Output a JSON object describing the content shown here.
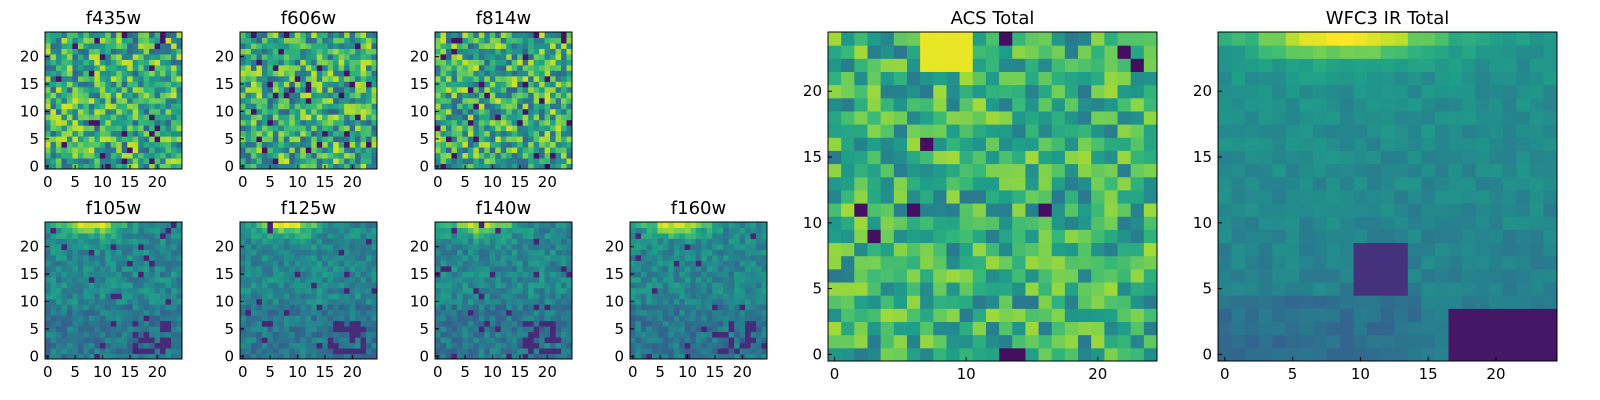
{
  "chart_data": {
    "type": "heatmap",
    "grid_size": 25,
    "colormap": "viridis",
    "panels": [
      {
        "id": "f435w",
        "title": "f435w",
        "xticks": [
          0,
          5,
          10,
          15,
          20
        ],
        "yticks": [
          0,
          5,
          10,
          15,
          20
        ],
        "pattern": "noise",
        "seed": 11
      },
      {
        "id": "f606w",
        "title": "f606w",
        "xticks": [
          0,
          5,
          10,
          15,
          20
        ],
        "yticks": [
          0,
          5,
          10,
          15,
          20
        ],
        "pattern": "noise",
        "seed": 23
      },
      {
        "id": "f814w",
        "title": "f814w",
        "xticks": [
          0,
          5,
          10,
          15,
          20
        ],
        "yticks": [
          0,
          5,
          10,
          15,
          20
        ],
        "pattern": "noise",
        "seed": 37
      },
      {
        "id": "f105w",
        "title": "f105w",
        "xticks": [
          0,
          5,
          10,
          15,
          20
        ],
        "yticks": [
          0,
          5,
          10,
          15,
          20
        ],
        "pattern": "ir",
        "seed": 41
      },
      {
        "id": "f125w",
        "title": "f125w",
        "xticks": [
          0,
          5,
          10,
          15,
          20
        ],
        "yticks": [
          0,
          5,
          10,
          15,
          20
        ],
        "pattern": "ir",
        "seed": 53
      },
      {
        "id": "f140w",
        "title": "f140w",
        "xticks": [
          0,
          5,
          10,
          15,
          20
        ],
        "yticks": [
          0,
          5,
          10,
          15,
          20
        ],
        "pattern": "ir",
        "seed": 67
      },
      {
        "id": "f160w",
        "title": "f160w",
        "xticks": [
          0,
          5,
          10,
          15,
          20
        ],
        "yticks": [
          0,
          5,
          10,
          15,
          20
        ],
        "pattern": "ir",
        "seed": 79
      },
      {
        "id": "acs-total",
        "title": "ACS Total",
        "xticks": [
          0,
          10,
          20
        ],
        "yticks": [
          0,
          5,
          10,
          15,
          20
        ],
        "pattern": "acs",
        "seed": 97
      },
      {
        "id": "wfc3-ir-total",
        "title": "WFC3 IR Total",
        "xticks": [
          0,
          5,
          10,
          15,
          20
        ],
        "yticks": [
          0,
          5,
          10,
          15,
          20
        ],
        "pattern": "wfc3",
        "seed": 131
      }
    ]
  }
}
